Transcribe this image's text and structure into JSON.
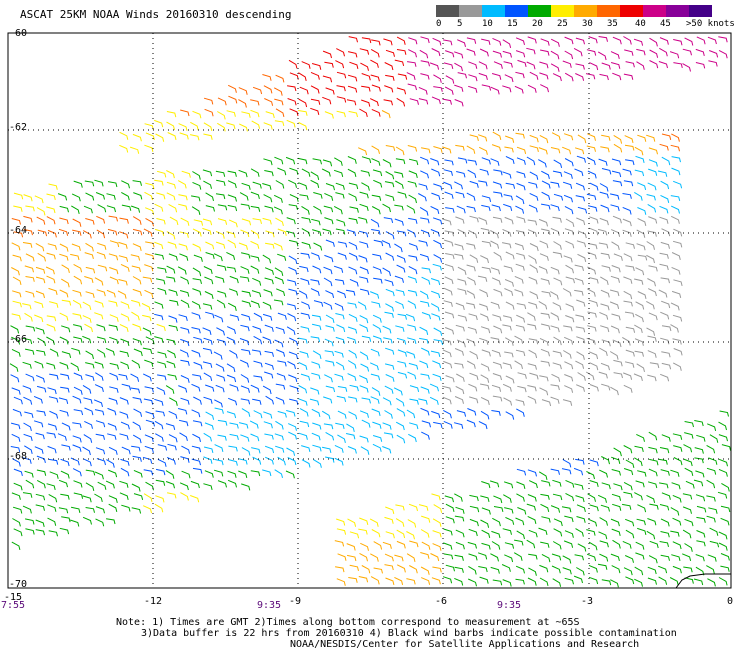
{
  "title": "ASCAT 25KM NOAA Winds 20160310 descending",
  "legend": {
    "labels": [
      "0",
      "5",
      "10",
      "15",
      "20",
      "25",
      "30",
      "35",
      "40",
      "45",
      ">50 knots"
    ],
    "colors": [
      "#555555",
      "#999999",
      "#00bbff",
      "#0055ff",
      "#00aa00",
      "#ffee00",
      "#ffaa00",
      "#ff6600",
      "#ee0000",
      "#cc0088",
      "#880099",
      "#440088"
    ]
  },
  "axes": {
    "lat_labels": [
      "-60",
      "-62",
      "-64",
      "-66",
      "-68",
      "-70"
    ],
    "lon_labels": [
      "-15",
      "-12",
      "-9",
      "-6",
      "-3",
      "0"
    ]
  },
  "times": [
    "7:55",
    "9:35",
    "9:35"
  ],
  "notes": [
    "Note: 1) Times are GMT 2)Times along bottom correspond to measurement at ~65S",
    "3)Data buffer is 22 hrs from 20160310 4) Black wind barbs indicate possible contamination",
    "NOAA/NESDIS/Center for Satellite Applications and Research"
  ]
}
